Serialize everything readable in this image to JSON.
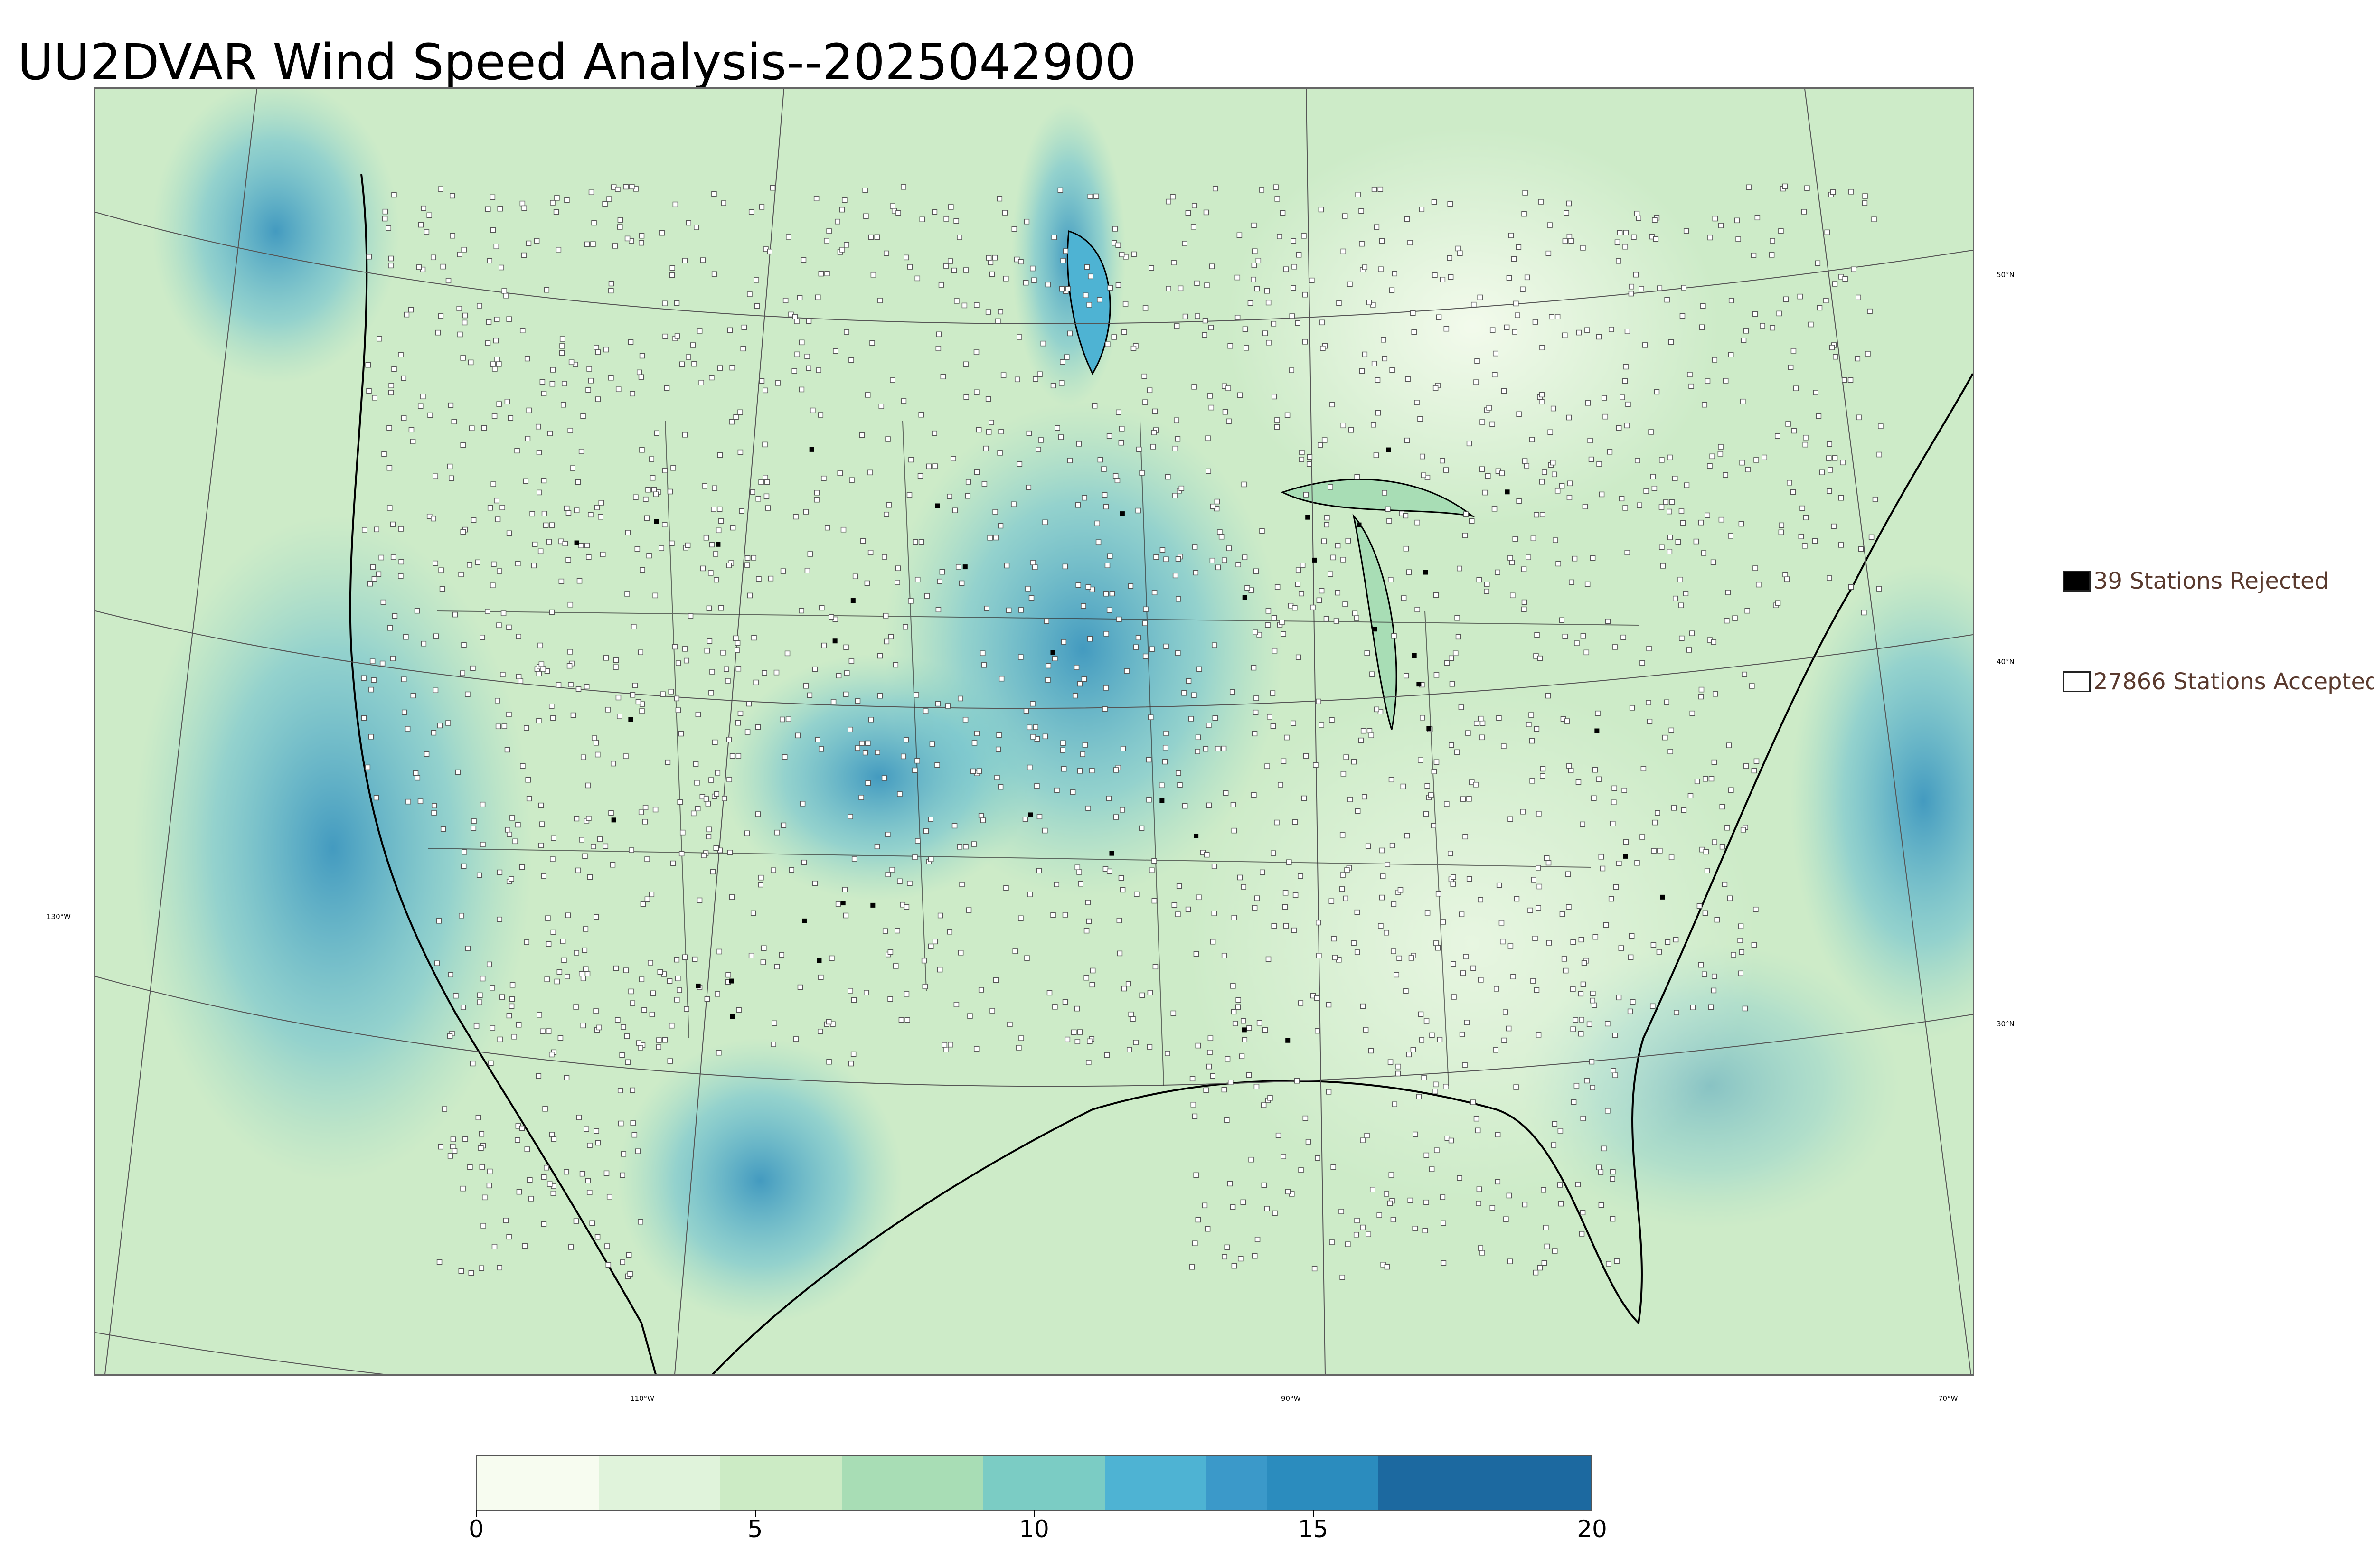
{
  "title": "UU2DVAR Wind Speed Analysis--2025042900",
  "map": {
    "lat_labels": [
      "50°N",
      "40°N",
      "30°N"
    ],
    "lon_labels": [
      "130°W",
      "110°W",
      "90°W",
      "70°W"
    ],
    "colors": {
      "low": "#f7fcf0",
      "mid": "#a8ddb5",
      "high": "#2b8cbe",
      "coast": "#000000",
      "station_accepted": "#ffffff",
      "station_rejected": "#000000"
    }
  },
  "legend": {
    "rejected": {
      "label": "39 Stations Rejected",
      "color": "#000000"
    },
    "accepted": {
      "label": "27866 Stations Accepted",
      "color": "#ffffff"
    }
  },
  "colorbar": {
    "min": 0,
    "max": 20,
    "ticks": [
      "0",
      "5",
      "10",
      "15",
      "20"
    ],
    "colors": [
      "#f7fcf0",
      "#e0f3db",
      "#ccebc5",
      "#a8ddb5",
      "#7bccc4",
      "#4eb3d3",
      "#3b99c9",
      "#2b8cbe",
      "#1c69a0"
    ]
  }
}
